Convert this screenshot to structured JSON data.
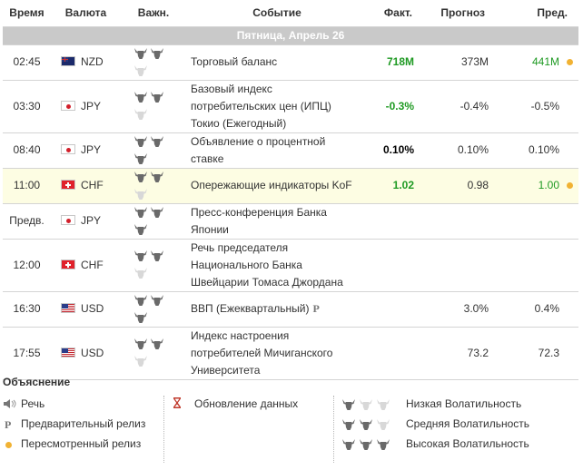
{
  "header": {
    "time": "Время",
    "currency": "Валюта",
    "importance": "Важн.",
    "event": "Событие",
    "actual": "Факт.",
    "forecast": "Прогноз",
    "previous": "Пред."
  },
  "date_label": "Пятница, Апрель 26",
  "rows": [
    {
      "time": "02:45",
      "currency": "NZD",
      "flag": "new-zealand-flag-icon",
      "importance": 2,
      "event_lines": [
        "Торговый баланс"
      ],
      "speech": false,
      "preliminary": false,
      "actual": "718M",
      "actual_color": "#1f9a23",
      "forecast": "373M",
      "previous": "441M",
      "previous_color": "#1f9a23",
      "revised": true,
      "highlight": false
    },
    {
      "time": "03:30",
      "currency": "JPY",
      "flag": "japan-flag-icon",
      "importance": 2,
      "event_lines": [
        "Базовый индекс",
        "потребительских цен (ИПЦ)",
        "Токио (Ежегодный)"
      ],
      "speech": false,
      "preliminary": false,
      "actual": "-0.3%",
      "actual_color": "#1f9a23",
      "forecast": "-0.4%",
      "previous": "-0.5%",
      "previous_color": "#333333",
      "revised": false,
      "highlight": false
    },
    {
      "time": "08:40",
      "currency": "JPY",
      "flag": "japan-flag-icon",
      "importance": 3,
      "event_lines": [
        "Объявление о процентной",
        "ставке"
      ],
      "speech": false,
      "preliminary": false,
      "actual": "0.10%",
      "actual_color": "#000000",
      "forecast": "0.10%",
      "previous": "0.10%",
      "previous_color": "#333333",
      "revised": false,
      "highlight": false
    },
    {
      "time": "11:00",
      "currency": "CHF",
      "flag": "switzerland-flag-icon",
      "importance": 2,
      "event_lines": [
        "Опережающие индикаторы KoF"
      ],
      "speech": false,
      "preliminary": false,
      "actual": "1.02",
      "actual_color": "#1f9a23",
      "forecast": "0.98",
      "previous": "1.00",
      "previous_color": "#1f9a23",
      "revised": true,
      "highlight": true
    },
    {
      "time": "Предв.",
      "currency": "JPY",
      "flag": "japan-flag-icon",
      "importance": 3,
      "event_lines": [
        "Пресс-конференция Банка",
        "Японии"
      ],
      "speech": false,
      "preliminary": false,
      "actual": "",
      "actual_color": "#333333",
      "forecast": "",
      "previous": "",
      "previous_color": "#333333",
      "revised": false,
      "highlight": false
    },
    {
      "time": "12:00",
      "currency": "CHF",
      "flag": "switzerland-flag-icon",
      "importance": 2,
      "event_lines": [
        "Речь председателя",
        "Национального Банка",
        "Швейцарии Томаса Джордана"
      ],
      "speech": false,
      "preliminary": false,
      "actual": "",
      "actual_color": "#333333",
      "forecast": "",
      "previous": "",
      "previous_color": "#333333",
      "revised": false,
      "highlight": false
    },
    {
      "time": "16:30",
      "currency": "USD",
      "flag": "usa-flag-icon",
      "importance": 3,
      "event_lines": [
        "ВВП (Ежеквартальный)"
      ],
      "speech": false,
      "preliminary": true,
      "actual": "",
      "actual_color": "#333333",
      "forecast": "3.0%",
      "previous": "0.4%",
      "previous_color": "#333333",
      "revised": false,
      "highlight": false
    },
    {
      "time": "17:55",
      "currency": "USD",
      "flag": "usa-flag-icon",
      "importance": 2,
      "event_lines": [
        "Индекс настроения",
        "потребителей Мичиганского",
        "Университета"
      ],
      "speech": false,
      "preliminary": false,
      "actual": "",
      "actual_color": "#333333",
      "forecast": "73.2",
      "previous": "72.3",
      "previous_color": "#333333",
      "revised": false,
      "highlight": false
    }
  ],
  "legend": {
    "title": "Объяснение",
    "speech": "Речь",
    "preliminary": "Предварительный релиз",
    "revised": "Пересмотренный релиз",
    "data_update": "Обновление данных",
    "low": "Низкая Волатильность",
    "medium": "Средняя Волатильность",
    "high": "Высокая Волатильность",
    "p_symbol": "P"
  },
  "colors": {
    "positive": "#1f9a23",
    "revised_dot": "#f1b233",
    "date_bar": "#c9c9c9",
    "highlight_row": "#fdfde3"
  }
}
